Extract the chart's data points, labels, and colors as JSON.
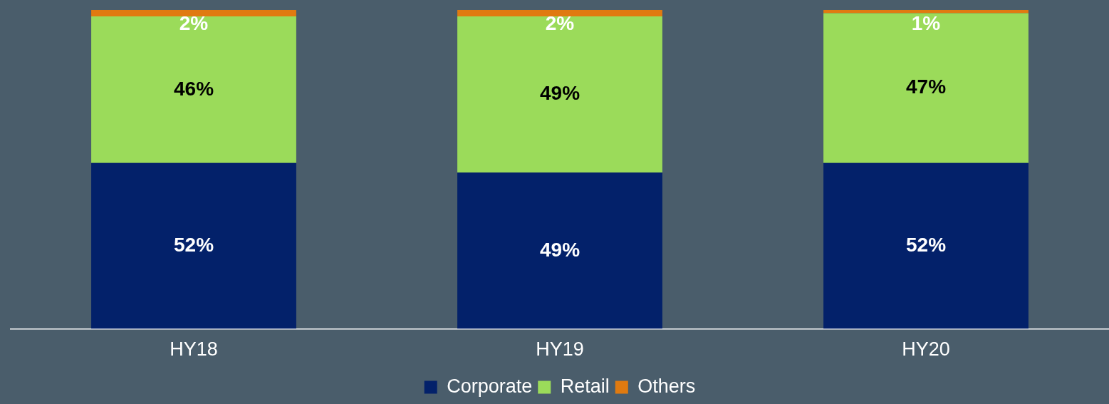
{
  "chart_data": {
    "type": "bar",
    "stacked": true,
    "categories": [
      "HY18",
      "HY19",
      "HY20"
    ],
    "series": [
      {
        "name": "Corporate",
        "color": "#03216a",
        "values": [
          52,
          49,
          52
        ],
        "value_labels": [
          "52%",
          "49%",
          "52%"
        ]
      },
      {
        "name": "Retail",
        "color": "#9bdb5a",
        "values": [
          46,
          49,
          47
        ],
        "value_labels": [
          "46%",
          "49%",
          "47%"
        ]
      },
      {
        "name": "Others",
        "color": "#e07a10",
        "values": [
          2,
          2,
          1
        ],
        "value_labels": [
          "2%",
          "2%",
          "1%"
        ]
      }
    ],
    "ylim": [
      0,
      100
    ],
    "tick_labels": "x",
    "grid": false,
    "legend": "bottom"
  }
}
